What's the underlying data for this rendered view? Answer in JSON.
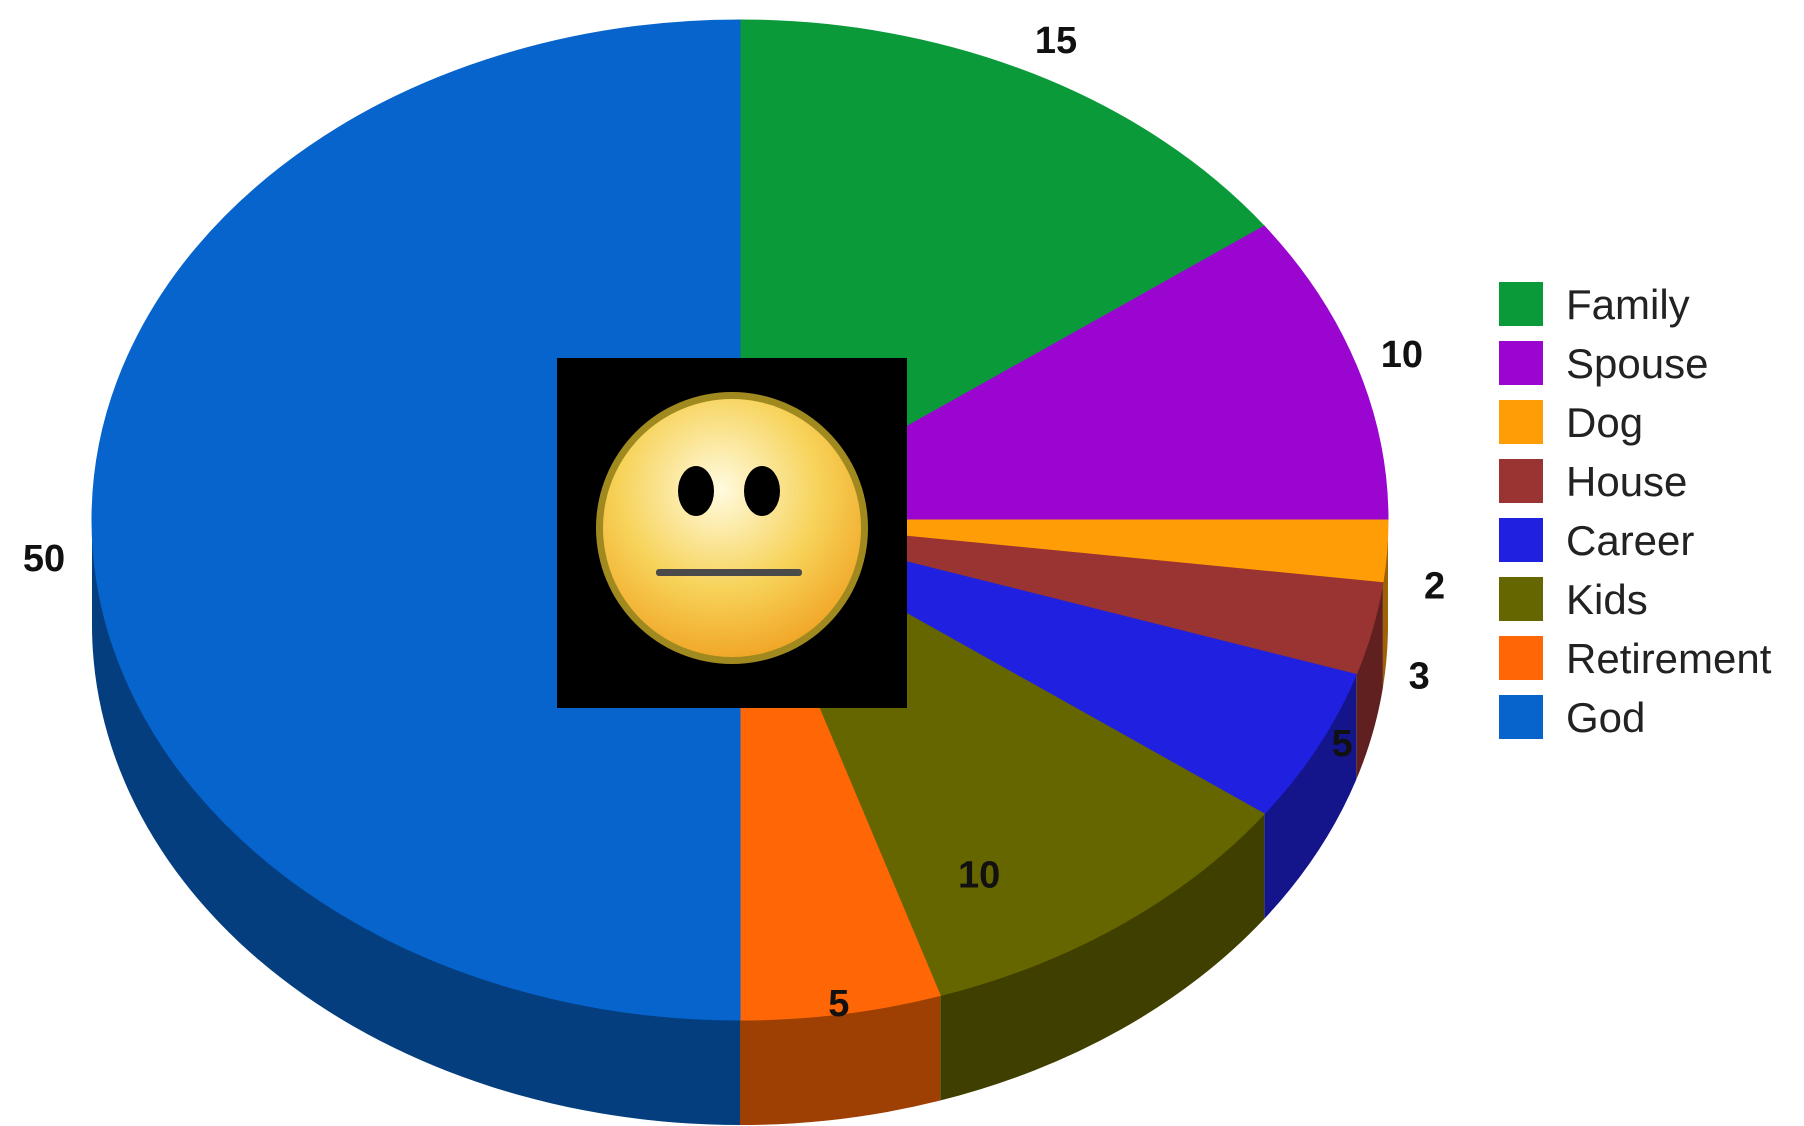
{
  "chart_data": {
    "type": "pie",
    "categories": [
      "Family",
      "Spouse",
      "Dog",
      "House",
      "Career",
      "Kids",
      "Retirement",
      "God"
    ],
    "values": [
      15,
      10,
      2,
      3,
      5,
      10,
      5,
      50
    ],
    "colors": [
      "#0a9a3a",
      "#9a06d0",
      "#ff9d06",
      "#9a3432",
      "#2020e0",
      "#666600",
      "#ff6706",
      "#0664cc"
    ],
    "data_labels": [
      "15",
      "10",
      "2",
      "3",
      "5",
      "10",
      "5",
      "50"
    ],
    "style": "3d",
    "legend_position": "right"
  },
  "center_image": {
    "icon": "neutral-face-emoji",
    "background": "#000000",
    "face_color": "#f5c842",
    "outline_color": "#a08a20"
  }
}
